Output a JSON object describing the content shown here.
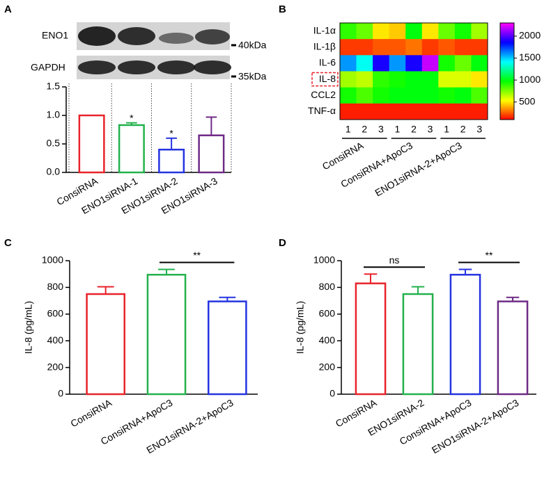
{
  "chart_data": [
    {
      "type": "bar",
      "panel": "A",
      "categories": [
        "ConsiRNA",
        "ENO1siRNA-1",
        "ENO1siRNA-2",
        "ENO1siRNA-3"
      ],
      "values": [
        1.0,
        0.83,
        0.4,
        0.65
      ],
      "errors": [
        null,
        0.04,
        0.2,
        0.32
      ],
      "colors": [
        "#e8232a",
        "#22b14c",
        "#2433e0",
        "#6f2a86"
      ],
      "significance": [
        null,
        "*",
        "*",
        null
      ],
      "ylim": [
        0,
        1.5
      ],
      "yticks": [
        {
          "value": 0,
          "label": "0.0"
        },
        {
          "value": 0.5,
          "label": "0.5"
        },
        {
          "value": 1,
          "label": "1.0"
        },
        {
          "value": 1.5,
          "label": "1.5"
        }
      ],
      "lane_dividers": true,
      "blot": {
        "bands": [
          "ENO1",
          "GAPDH"
        ],
        "markers": [
          "40kDa",
          "35kDa"
        ]
      }
    },
    {
      "type": "heatmap",
      "panel": "B",
      "rows": [
        "IL-1α",
        "IL-1β",
        "IL-6",
        "IL-8",
        "CCL2",
        "TNF-α"
      ],
      "columns": [
        "1",
        "2",
        "3",
        "1",
        "2",
        "3",
        "1",
        "2",
        "3"
      ],
      "groups": [
        "ConsiRNA",
        "ConsiRNA+ApoC3",
        "ENO1siRNA-2+ApoC3"
      ],
      "values": [
        [
          900,
          800,
          500,
          450,
          1000,
          500,
          800,
          950,
          700
        ],
        [
          200,
          200,
          250,
          250,
          300,
          200,
          250,
          200,
          200
        ],
        [
          1600,
          1400,
          1900,
          1600,
          1900,
          2200,
          950,
          800,
          1000
        ],
        [
          700,
          650,
          900,
          950,
          1000,
          1000,
          600,
          600,
          500
        ],
        [
          950,
          850,
          950,
          1000,
          1000,
          1000,
          950,
          1000,
          850
        ],
        [
          150,
          150,
          150,
          150,
          150,
          150,
          150,
          150,
          150
        ]
      ],
      "highlight_rows": [
        3
      ],
      "colormap": "rainbow",
      "clim": [
        100,
        2300
      ],
      "cticks": [
        500,
        1000,
        1500,
        2000
      ]
    },
    {
      "type": "bar",
      "panel": "C",
      "ylabel": "IL-8 (pg/mL)",
      "categories": [
        "ConsiRNA",
        "ConsiRNA+ApoC3",
        "ENO1siRNA-2+ApoC3"
      ],
      "values": [
        750,
        895,
        695
      ],
      "errors": [
        55,
        40,
        30
      ],
      "colors": [
        "#e8232a",
        "#22b14c",
        "#2433e0"
      ],
      "comparisons": [
        {
          "pair": [
            1,
            2
          ],
          "label": "**"
        }
      ],
      "ylim": [
        0,
        1000
      ],
      "yticks": [
        0,
        200,
        400,
        600,
        800,
        1000
      ]
    },
    {
      "type": "bar",
      "panel": "D",
      "ylabel": "IL-8 (pg/mL)",
      "categories": [
        "ConsiRNA",
        "ENO1siRNA-2",
        "ConsiRNA+ApoC3",
        "ENO1siRNA-2+ApoC3"
      ],
      "values": [
        830,
        750,
        895,
        695
      ],
      "errors": [
        70,
        55,
        40,
        30
      ],
      "colors": [
        "#e8232a",
        "#22b14c",
        "#2433e0",
        "#6f2a86"
      ],
      "comparisons": [
        {
          "pair": [
            0,
            1
          ],
          "label": "ns"
        },
        {
          "pair": [
            2,
            3
          ],
          "label": "**"
        }
      ],
      "ylim": [
        0,
        1000
      ],
      "yticks": [
        0,
        200,
        400,
        600,
        800,
        1000
      ]
    }
  ]
}
